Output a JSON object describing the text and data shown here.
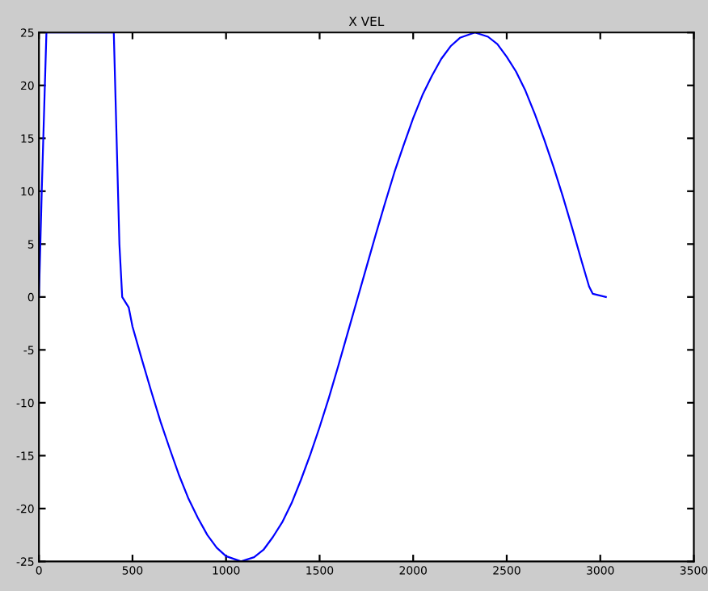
{
  "chart_data": {
    "type": "line",
    "title": "X VEL",
    "x": [
      0,
      15,
      40,
      400,
      430,
      445,
      480,
      500,
      550,
      600,
      650,
      700,
      750,
      800,
      850,
      900,
      950,
      1000,
      1080,
      1150,
      1200,
      1250,
      1300,
      1350,
      1400,
      1450,
      1500,
      1550,
      1600,
      1650,
      1700,
      1750,
      1800,
      1850,
      1900,
      1950,
      2000,
      2050,
      2100,
      2150,
      2200,
      2250,
      2330,
      2400,
      2450,
      2500,
      2550,
      2600,
      2650,
      2700,
      2750,
      2800,
      2850,
      2900,
      2940,
      2960,
      3030
    ],
    "series": [
      {
        "color": "#0000ff",
        "values": [
          0,
          10,
          25,
          25,
          5,
          0,
          -1,
          -2.8,
          -5.9,
          -8.9,
          -11.8,
          -14.4,
          -16.9,
          -19.1,
          -20.9,
          -22.5,
          -23.7,
          -24.5,
          -25,
          -24.6,
          -23.9,
          -22.7,
          -21.3,
          -19.5,
          -17.3,
          -14.9,
          -12.3,
          -9.5,
          -6.5,
          -3.4,
          -0.3,
          2.8,
          5.9,
          8.9,
          11.8,
          14.4,
          16.9,
          19.1,
          20.9,
          22.5,
          23.7,
          24.5,
          25,
          24.6,
          23.9,
          22.7,
          21.3,
          19.5,
          17.3,
          14.9,
          12.3,
          9.5,
          6.5,
          3.4,
          1,
          0.3,
          0
        ]
      }
    ],
    "xlim": [
      0,
      3500
    ],
    "xticks": [
      0,
      500,
      1000,
      1500,
      2000,
      2500,
      3000,
      3500
    ],
    "ylim": [
      -25,
      25
    ],
    "yticks": [
      -25,
      -20,
      -15,
      -10,
      -5,
      0,
      5,
      10,
      15,
      20,
      25
    ],
    "grid": false,
    "legend": false
  }
}
